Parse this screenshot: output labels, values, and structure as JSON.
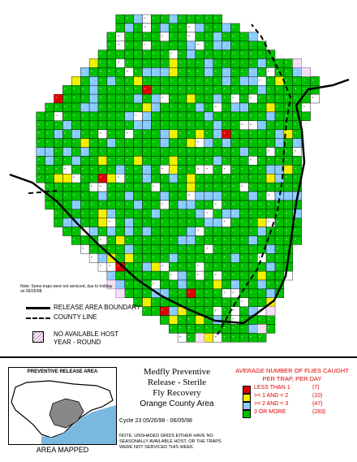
{
  "map": {
    "note_traps": "Note: Some traps were not serviced, due to holiday on 05/25/98.",
    "colors": {
      "less_than_1": "#e00000",
      "one_to_two": "#f0f000",
      "two_to_three": "#88ccff",
      "three_or_more": "#00c000",
      "boundary": "#000000",
      "hatch": "#b66cb6"
    }
  },
  "legend": {
    "release_boundary": "RELEASE AREA BOUNDARY",
    "county_line": "COUNTY LINE",
    "no_host": "NO AVAILABLE HOST YEAR - ROUND"
  },
  "inset": {
    "title": "PREVENTIVE RELEASE AREA",
    "caption": "AREA MAPPED"
  },
  "title_block": {
    "line1": "Medfly Preventive",
    "line2": "Release - Sterile",
    "line3": "Fly Recovery",
    "area": "Orange County Area",
    "cycle": "Cycle 23    05/26/98 - 06/05/98",
    "note": "NOTE: UNSHADED GRIDS EITHER HAVE NO SEASONALLY AVAILABLE HOST, OR THE TRAPS WERE NOT SERVICED THIS WEEK."
  },
  "avg_legend": {
    "title": "AVERAGE NUMBER OF FLIES CAUGHT PER TRAP, PER DAY",
    "items": [
      {
        "label": "LESS THAN 1",
        "count": "(7)",
        "color": "#e00000"
      },
      {
        "label": ">= 1 AND < 2",
        "count": "(10)",
        "color": "#f0f000"
      },
      {
        "label": ">= 2 AND < 3",
        "count": "(47)",
        "color": "#88ccff"
      },
      {
        "label": "3 OR MORE",
        "count": "(283)",
        "color": "#00c000"
      }
    ]
  }
}
